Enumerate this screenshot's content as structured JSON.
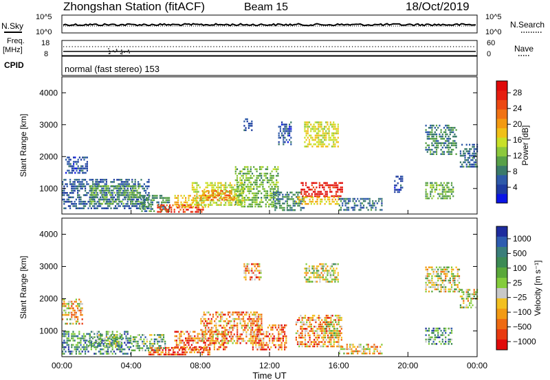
{
  "header": {
    "station": "Zhongshan Station (fitACF)",
    "beam": "Beam 15",
    "date": "18/Oct/2019"
  },
  "strip_panels": {
    "nsky_label": "N.Sky",
    "nsky_ticks": [
      "10^5",
      "10^0"
    ],
    "nsearch_label": "N.Search",
    "nsearch_ticks": [
      "10^5",
      "10^0"
    ],
    "freq_label_1": "Freq.",
    "freq_label_2": "[MHz]",
    "freq_ticks": [
      "18",
      "8"
    ],
    "nave_label": "Nave",
    "nave_ticks": [
      "60",
      "0"
    ],
    "cpid_label": "CPID",
    "cpid_text": "normal (fast stereo) 153"
  },
  "colors": {
    "power_scale": [
      "#0a14e6",
      "#1e3ca0",
      "#2e5aa8",
      "#3a7a6a",
      "#58a048",
      "#8cc83c",
      "#c8e028",
      "#f0c018",
      "#f39a12",
      "#f07214",
      "#ec4812",
      "#e61e10",
      "#e00a0a"
    ],
    "velocity_scale": [
      "#1e2c9e",
      "#2e5cb0",
      "#3a7e7a",
      "#3c8a54",
      "#5aa83a",
      "#84cc3c",
      "#c8c8c8",
      "#f2c020",
      "#f29a14",
      "#ee6a12",
      "#e83a10",
      "#e00a0a"
    ]
  },
  "chart_data": [
    {
      "type": "heatmap",
      "name": "power",
      "ylabel": "Slant Range [km]",
      "yticks": [
        "1000",
        "2000",
        "3000",
        "4000"
      ],
      "ylim": [
        200,
        4500
      ],
      "xlim": [
        "00:00",
        "24:00"
      ],
      "colorbar_label": "Power [dB]",
      "colorbar_ticks": [
        "4",
        "8",
        "12",
        "16",
        "20",
        "24",
        "28"
      ],
      "colorbar_range": [
        0,
        31
      ],
      "regions": [
        {
          "t": [
            0.0,
            5.0
          ],
          "r": [
            350,
            1300
          ],
          "v": 6
        },
        {
          "t": [
            1.6,
            4.5
          ],
          "r": [
            500,
            1100
          ],
          "v": 11
        },
        {
          "t": [
            4.5,
            6.2
          ],
          "r": [
            300,
            800
          ],
          "v": 9
        },
        {
          "t": [
            5.5,
            8.2
          ],
          "r": [
            250,
            500
          ],
          "v": 26
        },
        {
          "t": [
            6.5,
            8.5
          ],
          "r": [
            400,
            800
          ],
          "v": 18
        },
        {
          "t": [
            7.5,
            10.5
          ],
          "r": [
            500,
            1200
          ],
          "v": 15
        },
        {
          "t": [
            8.0,
            10.0
          ],
          "r": [
            650,
            950
          ],
          "v": 22
        },
        {
          "t": [
            10.0,
            12.5
          ],
          "r": [
            400,
            1700
          ],
          "v": 12
        },
        {
          "t": [
            12.2,
            14.0
          ],
          "r": [
            300,
            900
          ],
          "v": 9
        },
        {
          "t": [
            13.8,
            16.2
          ],
          "r": [
            750,
            1200
          ],
          "v": 28
        },
        {
          "t": [
            13.5,
            16.0
          ],
          "r": [
            500,
            750
          ],
          "v": 18
        },
        {
          "t": [
            16.0,
            18.5
          ],
          "r": [
            300,
            700
          ],
          "v": 7
        },
        {
          "t": [
            14.0,
            16.0
          ],
          "r": [
            2300,
            3100
          ],
          "v": 16
        },
        {
          "t": [
            10.5,
            11.0
          ],
          "r": [
            2800,
            3200
          ],
          "v": 5
        },
        {
          "t": [
            12.5,
            13.2
          ],
          "r": [
            2400,
            3100
          ],
          "v": 5
        },
        {
          "t": [
            21.0,
            22.8
          ],
          "r": [
            2100,
            3000
          ],
          "v": 9
        },
        {
          "t": [
            23.0,
            24.0
          ],
          "r": [
            1700,
            2400
          ],
          "v": 7
        },
        {
          "t": [
            21.0,
            22.6
          ],
          "r": [
            650,
            1200
          ],
          "v": 12
        },
        {
          "t": [
            19.2,
            19.7
          ],
          "r": [
            900,
            1400
          ],
          "v": 5
        },
        {
          "t": [
            0.2,
            1.5
          ],
          "r": [
            1500,
            2000
          ],
          "v": 5
        }
      ]
    },
    {
      "type": "heatmap",
      "name": "velocity",
      "ylabel": "Slant Range [km]",
      "yticks": [
        "1000",
        "2000",
        "3000",
        "4000"
      ],
      "ylim": [
        200,
        4500
      ],
      "xlim": [
        "00:00",
        "24:00"
      ],
      "xticks": [
        "00:00",
        "04:00",
        "08:00",
        "12:00",
        "16:00",
        "20:00",
        "00:00"
      ],
      "xlabel": "Time UT",
      "colorbar_label": "Velocity [m s⁻¹]",
      "colorbar_ticks": [
        "1000",
        "500",
        "100",
        "25",
        "−25",
        "−100",
        "−500",
        "−1000"
      ],
      "regions": [
        {
          "t": [
            0.0,
            4.0
          ],
          "r": [
            300,
            1000
          ],
          "v": 3
        },
        {
          "t": [
            1.5,
            3.5
          ],
          "r": [
            500,
            900
          ],
          "v": 4
        },
        {
          "t": [
            4.0,
            6.0
          ],
          "r": [
            400,
            900
          ],
          "v": 4
        },
        {
          "t": [
            5.0,
            8.5
          ],
          "r": [
            250,
            500
          ],
          "v": 10
        },
        {
          "t": [
            6.5,
            9.5
          ],
          "r": [
            450,
            1000
          ],
          "v": 9
        },
        {
          "t": [
            8.0,
            11.5
          ],
          "r": [
            600,
            1600
          ],
          "v": 8
        },
        {
          "t": [
            11.0,
            13.0
          ],
          "r": [
            400,
            1200
          ],
          "v": 9
        },
        {
          "t": [
            13.5,
            16.2
          ],
          "r": [
            500,
            1500
          ],
          "v": 8
        },
        {
          "t": [
            15.0,
            16.0
          ],
          "r": [
            800,
            1300
          ],
          "v": 6
        },
        {
          "t": [
            16.0,
            18.5
          ],
          "r": [
            300,
            600
          ],
          "v": 7
        },
        {
          "t": [
            14.0,
            16.0
          ],
          "r": [
            2500,
            3100
          ],
          "v": 6
        },
        {
          "t": [
            21.0,
            23.0
          ],
          "r": [
            2200,
            3000
          ],
          "v": 6
        },
        {
          "t": [
            23.0,
            24.0
          ],
          "r": [
            1700,
            2300
          ],
          "v": 6
        },
        {
          "t": [
            21.0,
            22.5
          ],
          "r": [
            600,
            1100
          ],
          "v": 3
        },
        {
          "t": [
            0.0,
            1.2
          ],
          "r": [
            1200,
            2000
          ],
          "v": 7
        },
        {
          "t": [
            10.5,
            11.5
          ],
          "r": [
            2600,
            3100
          ],
          "v": 8
        }
      ]
    }
  ]
}
